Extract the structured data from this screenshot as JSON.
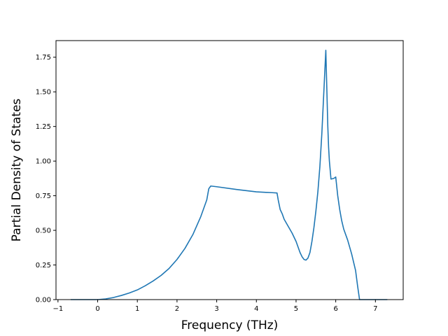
{
  "chart_data": {
    "type": "line",
    "title": "",
    "xlabel": "Frequency (THz)",
    "ylabel": "Partial Density of States",
    "xlim": [
      -1.05,
      7.7
    ],
    "ylim": [
      0,
      1.87
    ],
    "xticks": [
      -1,
      0,
      1,
      2,
      3,
      4,
      5,
      6,
      7
    ],
    "xtick_labels": [
      "−1",
      "0",
      "1",
      "2",
      "3",
      "4",
      "5",
      "6",
      "7"
    ],
    "yticks": [
      0,
      0.25,
      0.5,
      0.75,
      1.0,
      1.25,
      1.5,
      1.75
    ],
    "ytick_labels": [
      "0.00",
      "0.25",
      "0.50",
      "0.75",
      "1.00",
      "1.25",
      "1.50",
      "1.75"
    ],
    "grid": false,
    "line_color": "#1f77b4",
    "series": [
      {
        "x": [
          -0.68,
          0.0,
          0.2,
          0.4,
          0.6,
          0.8,
          1.0,
          1.2,
          1.4,
          1.6,
          1.8,
          2.0,
          2.2,
          2.4,
          2.6,
          2.75,
          2.8,
          2.85,
          3.0,
          3.5,
          4.0,
          4.2,
          4.4,
          4.52,
          4.55,
          4.6,
          4.65,
          4.7,
          4.8,
          4.9,
          5.0,
          5.1,
          5.15,
          5.2,
          5.25,
          5.3,
          5.35,
          5.4,
          5.45,
          5.5,
          5.55,
          5.6,
          5.65,
          5.7,
          5.75,
          5.8,
          5.82,
          5.84,
          5.88,
          5.95,
          6.0,
          6.05,
          6.1,
          6.15,
          6.2,
          6.3,
          6.4,
          6.5,
          6.55,
          6.6,
          6.64,
          7.3
        ],
        "y": [
          0.0,
          0.0,
          0.005,
          0.015,
          0.03,
          0.048,
          0.07,
          0.1,
          0.135,
          0.175,
          0.225,
          0.29,
          0.37,
          0.47,
          0.6,
          0.72,
          0.8,
          0.82,
          0.815,
          0.795,
          0.778,
          0.775,
          0.772,
          0.77,
          0.72,
          0.65,
          0.62,
          0.58,
          0.53,
          0.48,
          0.42,
          0.34,
          0.31,
          0.29,
          0.285,
          0.3,
          0.34,
          0.42,
          0.52,
          0.64,
          0.78,
          0.96,
          1.2,
          1.5,
          1.8,
          1.25,
          1.1,
          1.0,
          0.87,
          0.875,
          0.885,
          0.75,
          0.65,
          0.57,
          0.51,
          0.43,
          0.33,
          0.21,
          0.1,
          0.0,
          0.0,
          0.0
        ]
      }
    ]
  }
}
